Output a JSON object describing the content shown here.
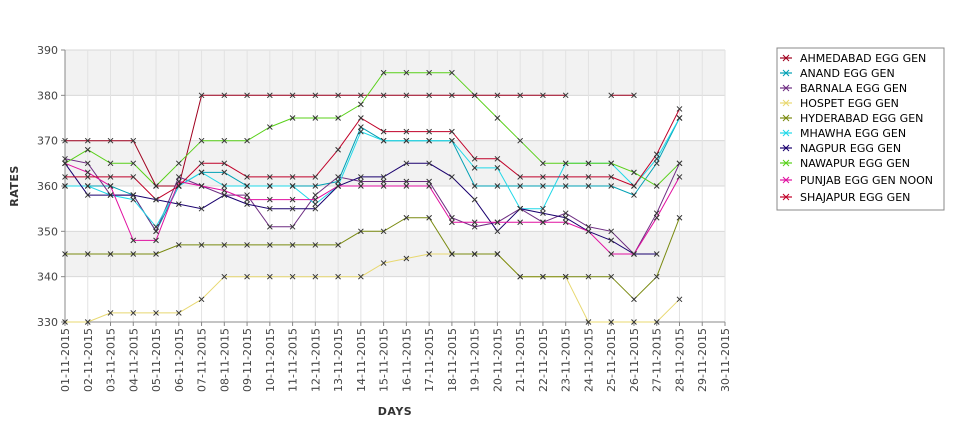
{
  "chart_data": {
    "type": "line",
    "xlabel": "DAYS",
    "ylabel": "RATES",
    "ylim": [
      330,
      390
    ],
    "yticks": [
      330,
      340,
      350,
      360,
      370,
      380,
      390
    ],
    "grid": true,
    "legend_position": "right",
    "categories": [
      "01-11-2015",
      "02-11-2015",
      "03-11-2015",
      "04-11-2015",
      "05-11-2015",
      "06-11-2015",
      "07-11-2015",
      "08-11-2015",
      "09-11-2015",
      "10-11-2015",
      "11-11-2015",
      "12-11-2015",
      "13-11-2015",
      "14-11-2015",
      "15-11-2015",
      "16-11-2015",
      "17-11-2015",
      "18-11-2015",
      "19-11-2015",
      "20-11-2015",
      "21-11-2015",
      "22-11-2015",
      "23-11-2015",
      "24-11-2015",
      "25-11-2015",
      "26-11-2015",
      "27-11-2015",
      "28-11-2015",
      "29-11-2015",
      "30-11-2015"
    ],
    "series": [
      {
        "name": "AHMEDABAD EGG GEN",
        "color": "#a0001e",
        "values": [
          370,
          370,
          370,
          370,
          360,
          360,
          380,
          380,
          380,
          380,
          380,
          380,
          380,
          380,
          380,
          380,
          380,
          380,
          380,
          380,
          380,
          380,
          380,
          null,
          380,
          380,
          null,
          null,
          null,
          null
        ]
      },
      {
        "name": "ANAND EGG GEN",
        "color": "#00a0b4",
        "values": [
          360,
          360,
          360,
          358,
          350,
          360,
          363,
          363,
          360,
          360,
          360,
          360,
          361,
          373,
          370,
          370,
          370,
          370,
          360,
          360,
          360,
          360,
          360,
          360,
          360,
          358,
          365,
          375,
          null,
          null
        ]
      },
      {
        "name": "BARNALA EGG GEN",
        "color": "#6e2d82",
        "values": [
          366,
          365,
          358,
          358,
          350,
          362,
          360,
          358,
          358,
          351,
          351,
          358,
          362,
          361,
          361,
          361,
          361,
          353,
          351,
          352,
          355,
          352,
          354,
          351,
          350,
          345,
          354,
          365,
          null,
          null
        ]
      },
      {
        "name": "HOSPET EGG GEN",
        "color": "#e8d870",
        "values": [
          330,
          330,
          332,
          332,
          332,
          332,
          335,
          340,
          340,
          340,
          340,
          340,
          340,
          340,
          343,
          344,
          345,
          345,
          345,
          345,
          340,
          340,
          340,
          330,
          330,
          330,
          330,
          335,
          null,
          null
        ]
      },
      {
        "name": "HYDERABAD EGG GEN",
        "color": "#7a8a10",
        "values": [
          345,
          345,
          345,
          345,
          345,
          347,
          347,
          347,
          347,
          347,
          347,
          347,
          347,
          350,
          350,
          353,
          353,
          345,
          345,
          345,
          340,
          340,
          340,
          340,
          340,
          335,
          340,
          353,
          null,
          null
        ]
      },
      {
        "name": "MHAWHA EGG GEN",
        "color": "#20d8e8",
        "values": [
          360,
          360,
          358,
          357,
          351,
          360,
          363,
          360,
          360,
          360,
          360,
          356,
          360,
          372,
          370,
          370,
          370,
          370,
          364,
          364,
          355,
          355,
          365,
          365,
          365,
          360,
          366,
          375,
          null,
          null
        ]
      },
      {
        "name": "NAGPUR EGG GEN",
        "color": "#1a006e",
        "values": [
          365,
          358,
          358,
          358,
          357,
          356,
          355,
          358,
          356,
          355,
          355,
          355,
          360,
          362,
          362,
          365,
          365,
          362,
          357,
          350,
          355,
          354,
          353,
          350,
          348,
          345,
          345,
          null,
          null,
          null
        ]
      },
      {
        "name": "NAWAPUR EGG GEN",
        "color": "#58d018",
        "values": [
          365,
          368,
          365,
          365,
          360,
          365,
          370,
          370,
          370,
          373,
          375,
          375,
          375,
          378,
          385,
          385,
          385,
          385,
          380,
          375,
          370,
          365,
          365,
          365,
          365,
          363,
          360,
          365,
          null,
          null
        ]
      },
      {
        "name": "PUNJAB EGG GEN NOON",
        "color": "#e010a0",
        "values": [
          365,
          363,
          360,
          348,
          348,
          361,
          360,
          359,
          357,
          357,
          357,
          357,
          360,
          360,
          360,
          360,
          360,
          352,
          352,
          352,
          352,
          352,
          352,
          350,
          345,
          345,
          353,
          362,
          null,
          null
        ]
      },
      {
        "name": "SHAJAPUR EGG GEN",
        "color": "#c00028",
        "values": [
          362,
          362,
          362,
          362,
          357,
          360,
          365,
          365,
          362,
          362,
          362,
          362,
          368,
          375,
          372,
          372,
          372,
          372,
          366,
          366,
          362,
          362,
          362,
          362,
          362,
          360,
          367,
          377,
          null,
          null
        ]
      }
    ]
  }
}
